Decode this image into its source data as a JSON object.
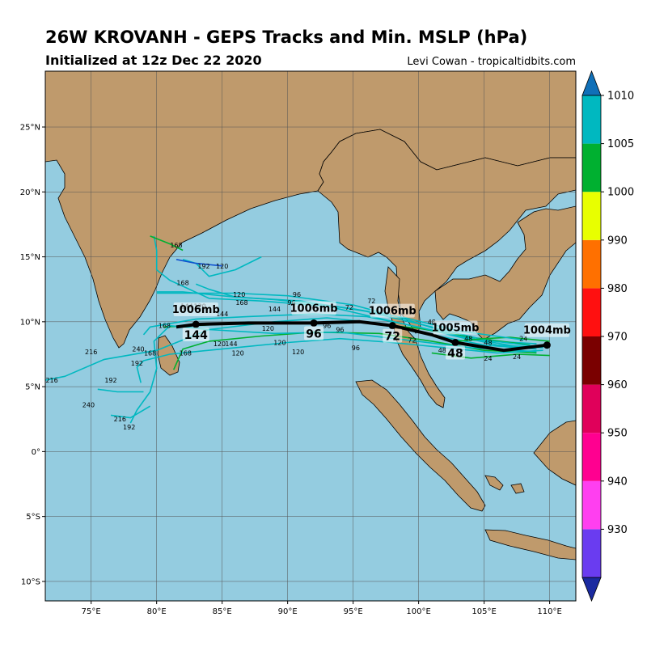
{
  "title": "26W KROVANH - GEPS Tracks and Min. MSLP (hPa)",
  "subtitle": "Initialized at 12z Dec 22 2020",
  "credit": "Levi Cowan - tropicaltidbits.com",
  "map": {
    "lon_range": [
      71.5,
      112
    ],
    "lat_range": [
      -11.5,
      29.3
    ],
    "lon_ticks": [
      {
        "v": 75,
        "label": "75°E"
      },
      {
        "v": 80,
        "label": "80°E"
      },
      {
        "v": 85,
        "label": "85°E"
      },
      {
        "v": 90,
        "label": "90°E"
      },
      {
        "v": 95,
        "label": "95°E"
      },
      {
        "v": 100,
        "label": "100°E"
      },
      {
        "v": 105,
        "label": "105°E"
      },
      {
        "v": 110,
        "label": "110°E"
      }
    ],
    "lat_ticks": [
      {
        "v": 25,
        "label": "25°N"
      },
      {
        "v": 20,
        "label": "20°N"
      },
      {
        "v": 15,
        "label": "15°N"
      },
      {
        "v": 10,
        "label": "10°N"
      },
      {
        "v": 5,
        "label": "5°N"
      },
      {
        "v": 0,
        "label": "0°"
      },
      {
        "v": -5,
        "label": "5°S"
      },
      {
        "v": -10,
        "label": "10°S"
      }
    ],
    "colors": {
      "ocean": "#94cce0",
      "land": "#bf9a6c",
      "grid": "#555555"
    }
  },
  "colorbar": {
    "ticks": [
      "1010",
      "1005",
      "1000",
      "990",
      "980",
      "970",
      "960",
      "950",
      "940",
      "930"
    ],
    "levels": [
      {
        "color": "#1a2aa0"
      },
      {
        "color": "#6a3cf0"
      },
      {
        "color": "#ff3ff0"
      },
      {
        "color": "#ff0090"
      },
      {
        "color": "#e0005a"
      },
      {
        "color": "#7a0000"
      },
      {
        "color": "#ff1010"
      },
      {
        "color": "#ff7000"
      },
      {
        "color": "#e8ff00"
      },
      {
        "color": "#00b030"
      },
      {
        "color": "#00b8c0"
      },
      {
        "color": "#1070b8"
      }
    ]
  },
  "mean_track": {
    "points": [
      [
        109.8,
        8.2
      ],
      [
        106.5,
        7.8
      ],
      [
        102.8,
        8.4
      ],
      [
        101,
        9.0
      ],
      [
        98,
        9.7
      ],
      [
        95.5,
        10.0
      ],
      [
        92,
        9.9
      ],
      [
        87,
        9.9
      ],
      [
        83,
        9.8
      ],
      [
        81.5,
        9.6
      ]
    ],
    "markers": [
      {
        "lon": 109.8,
        "lat": 8.2,
        "label": "1004mb",
        "hour": ""
      },
      {
        "lon": 102.8,
        "lat": 8.4,
        "label": "1005mb",
        "hour": "48"
      },
      {
        "lon": 98,
        "lat": 9.7,
        "label": "1006mb",
        "hour": "72"
      },
      {
        "lon": 92,
        "lat": 9.9,
        "label": "1006mb",
        "hour": "96"
      },
      {
        "lon": 83,
        "lat": 9.8,
        "label": "1006mb",
        "hour": "144"
      }
    ]
  },
  "ensemble_tracks": [
    {
      "color": "#00b8c0",
      "points": [
        [
          109.5,
          8.0
        ],
        [
          106,
          8.2
        ],
        [
          103,
          8.9
        ],
        [
          99,
          10.2
        ],
        [
          95,
          11.3
        ],
        [
          90,
          12.0
        ],
        [
          86,
          12.2
        ],
        [
          80,
          12.2
        ]
      ]
    },
    {
      "color": "#00b8c0",
      "points": [
        [
          109,
          8.3
        ],
        [
          104,
          8.6
        ],
        [
          100,
          9.6
        ],
        [
          96,
          10.4
        ],
        [
          92,
          10.6
        ],
        [
          87,
          10.4
        ],
        [
          83,
          10.2
        ],
        [
          79.5,
          9.6
        ],
        [
          79,
          9.0
        ]
      ]
    },
    {
      "color": "#00b030",
      "points": [
        [
          109,
          7.6
        ],
        [
          105,
          7.8
        ],
        [
          101,
          8.5
        ],
        [
          97,
          9.1
        ],
        [
          92,
          9.2
        ],
        [
          88,
          8.9
        ],
        [
          84,
          8.5
        ],
        [
          82,
          7.9
        ],
        [
          81.3,
          6.3
        ]
      ]
    },
    {
      "color": "#00b8c0",
      "points": [
        [
          109.5,
          7.8
        ],
        [
          106,
          7.6
        ],
        [
          102,
          8.0
        ],
        [
          98,
          8.4
        ],
        [
          94,
          8.7
        ],
        [
          90,
          8.4
        ],
        [
          86,
          8.0
        ],
        [
          81,
          7.5
        ],
        [
          79,
          7.0
        ],
        [
          78.5,
          6.5
        ],
        [
          78.8,
          5.3
        ]
      ]
    },
    {
      "color": "#00b8c0",
      "points": [
        [
          109,
          7.9
        ],
        [
          105,
          8.2
        ],
        [
          101,
          9.0
        ],
        [
          97,
          9.9
        ],
        [
          93,
          10.3
        ],
        [
          89,
          10.0
        ],
        [
          84,
          9.4
        ],
        [
          80,
          7.8
        ],
        [
          76,
          7.1
        ],
        [
          73,
          5.8
        ],
        [
          71.5,
          5.5
        ]
      ]
    },
    {
      "color": "#00b030",
      "points": [
        [
          108.5,
          8.2
        ],
        [
          104,
          8.8
        ],
        [
          100,
          9.5
        ],
        [
          95,
          10.0
        ],
        [
          90,
          9.9
        ],
        [
          85,
          9.8
        ],
        [
          80.5,
          9.6
        ]
      ]
    },
    {
      "color": "#00b8c0",
      "points": [
        [
          109,
          8.1
        ],
        [
          105,
          8.6
        ],
        [
          101,
          9.6
        ],
        [
          96,
          10.8
        ],
        [
          91,
          11.6
        ],
        [
          86,
          11.9
        ],
        [
          82,
          12.3
        ],
        [
          80,
          12.3
        ]
      ]
    },
    {
      "color": "#00b8c0",
      "points": [
        [
          108,
          8.0
        ],
        [
          104,
          8.7
        ],
        [
          99,
          9.8
        ],
        [
          93,
          11.2
        ],
        [
          88,
          11.6
        ],
        [
          84,
          11.8
        ],
        [
          81,
          13.2
        ],
        [
          80,
          14.0
        ],
        [
          80,
          15.5
        ],
        [
          79.8,
          16.6
        ]
      ]
    },
    {
      "color": "#00b8c0",
      "points": [
        [
          109,
          7.7
        ],
        [
          104,
          8.0
        ],
        [
          99,
          8.6
        ],
        [
          94,
          9.2
        ],
        [
          89,
          9.1
        ],
        [
          84,
          9.4
        ],
        [
          81,
          9.7
        ],
        [
          79.8,
          8.5
        ],
        [
          80,
          6.4
        ],
        [
          79.5,
          4.6
        ],
        [
          78.5,
          3.2
        ],
        [
          78,
          2.2
        ]
      ]
    },
    {
      "color": "#00b030",
      "points": [
        [
          110,
          8.5
        ],
        [
          107,
          8.8
        ],
        [
          105,
          8.7
        ],
        [
          103,
          8.5
        ]
      ]
    },
    {
      "color": "#00b030",
      "points": [
        [
          110,
          7.4
        ],
        [
          107.5,
          7.5
        ],
        [
          104,
          7.2
        ],
        [
          101,
          7.6
        ]
      ]
    },
    {
      "color": "#00b8c0",
      "points": [
        [
          108,
          8.6
        ],
        [
          103,
          9.3
        ],
        [
          99,
          10.3
        ],
        [
          95,
          11.0
        ],
        [
          92,
          11.4
        ],
        [
          89,
          11.7
        ],
        [
          86,
          11.9
        ],
        [
          84,
          12.5
        ],
        [
          83,
          12.9
        ]
      ]
    },
    {
      "color": "#00b8c0",
      "points": [
        [
          88,
          15.0
        ],
        [
          86,
          14.0
        ],
        [
          84,
          13.5
        ],
        [
          83,
          14.5
        ],
        [
          82,
          14.8
        ]
      ]
    },
    {
      "color": "#1050d0",
      "points": [
        [
          85,
          14.3
        ],
        [
          83,
          14.5
        ],
        [
          81.5,
          14.8
        ]
      ]
    },
    {
      "color": "#00b8c0",
      "points": [
        [
          79,
          4.6
        ],
        [
          77,
          4.6
        ],
        [
          75.5,
          4.8
        ]
      ]
    },
    {
      "color": "#00b8c0",
      "points": [
        [
          79.5,
          3.5
        ],
        [
          78,
          2.6
        ],
        [
          76.5,
          2.8
        ]
      ]
    },
    {
      "color": "#00b030",
      "points": [
        [
          79.5,
          16.6
        ],
        [
          81,
          16.0
        ],
        [
          82,
          15.5
        ]
      ]
    }
  ],
  "hour_labels": [
    {
      "lon": 108,
      "lat": 8.7,
      "text": "24"
    },
    {
      "lon": 107.5,
      "lat": 7.3,
      "text": "24"
    },
    {
      "lon": 105.3,
      "lat": 7.2,
      "text": "24"
    },
    {
      "lon": 103.8,
      "lat": 8.7,
      "text": "48"
    },
    {
      "lon": 101,
      "lat": 10.0,
      "text": "48"
    },
    {
      "lon": 101.8,
      "lat": 7.8,
      "text": "48"
    },
    {
      "lon": 105.3,
      "lat": 8.4,
      "text": "48"
    },
    {
      "lon": 96.4,
      "lat": 11.6,
      "text": "72"
    },
    {
      "lon": 99.5,
      "lat": 8.6,
      "text": "72"
    },
    {
      "lon": 94.7,
      "lat": 11.1,
      "text": "72"
    },
    {
      "lon": 90.7,
      "lat": 12.1,
      "text": "96"
    },
    {
      "lon": 90.3,
      "lat": 11.5,
      "text": "96"
    },
    {
      "lon": 93,
      "lat": 9.7,
      "text": "96"
    },
    {
      "lon": 95.2,
      "lat": 8.0,
      "text": "96"
    },
    {
      "lon": 94,
      "lat": 9.4,
      "text": "96"
    },
    {
      "lon": 86.3,
      "lat": 12.1,
      "text": "120"
    },
    {
      "lon": 85,
      "lat": 14.3,
      "text": "120"
    },
    {
      "lon": 88.5,
      "lat": 9.5,
      "text": "120"
    },
    {
      "lon": 89.4,
      "lat": 8.4,
      "text": "120"
    },
    {
      "lon": 90.8,
      "lat": 7.7,
      "text": "120"
    },
    {
      "lon": 86.2,
      "lat": 7.6,
      "text": "120"
    },
    {
      "lon": 84.8,
      "lat": 8.3,
      "text": "120"
    },
    {
      "lon": 83.3,
      "lat": 11.2,
      "text": "120"
    },
    {
      "lon": 82.3,
      "lat": 11.2,
      "text": "144"
    },
    {
      "lon": 89,
      "lat": 11.0,
      "text": "144"
    },
    {
      "lon": 85,
      "lat": 10.6,
      "text": "144"
    },
    {
      "lon": 85.7,
      "lat": 8.3,
      "text": "144"
    },
    {
      "lon": 82,
      "lat": 13.0,
      "text": "168"
    },
    {
      "lon": 86.5,
      "lat": 11.5,
      "text": "168"
    },
    {
      "lon": 80.6,
      "lat": 9.7,
      "text": "168"
    },
    {
      "lon": 79.5,
      "lat": 7.6,
      "text": "168"
    },
    {
      "lon": 82.2,
      "lat": 7.6,
      "text": "168"
    },
    {
      "lon": 83.6,
      "lat": 14.3,
      "text": "192"
    },
    {
      "lon": 78.5,
      "lat": 6.8,
      "text": "192"
    },
    {
      "lon": 76.5,
      "lat": 5.5,
      "text": "192"
    },
    {
      "lon": 77.9,
      "lat": 1.9,
      "text": "192"
    },
    {
      "lon": 75,
      "lat": 7.7,
      "text": "216"
    },
    {
      "lon": 72,
      "lat": 5.5,
      "text": "216"
    },
    {
      "lon": 77.2,
      "lat": 2.5,
      "text": "216"
    },
    {
      "lon": 78.6,
      "lat": 7.9,
      "text": "240"
    },
    {
      "lon": 74.8,
      "lat": 3.6,
      "text": "240"
    },
    {
      "lon": 81.5,
      "lat": 15.9,
      "text": "168"
    }
  ]
}
